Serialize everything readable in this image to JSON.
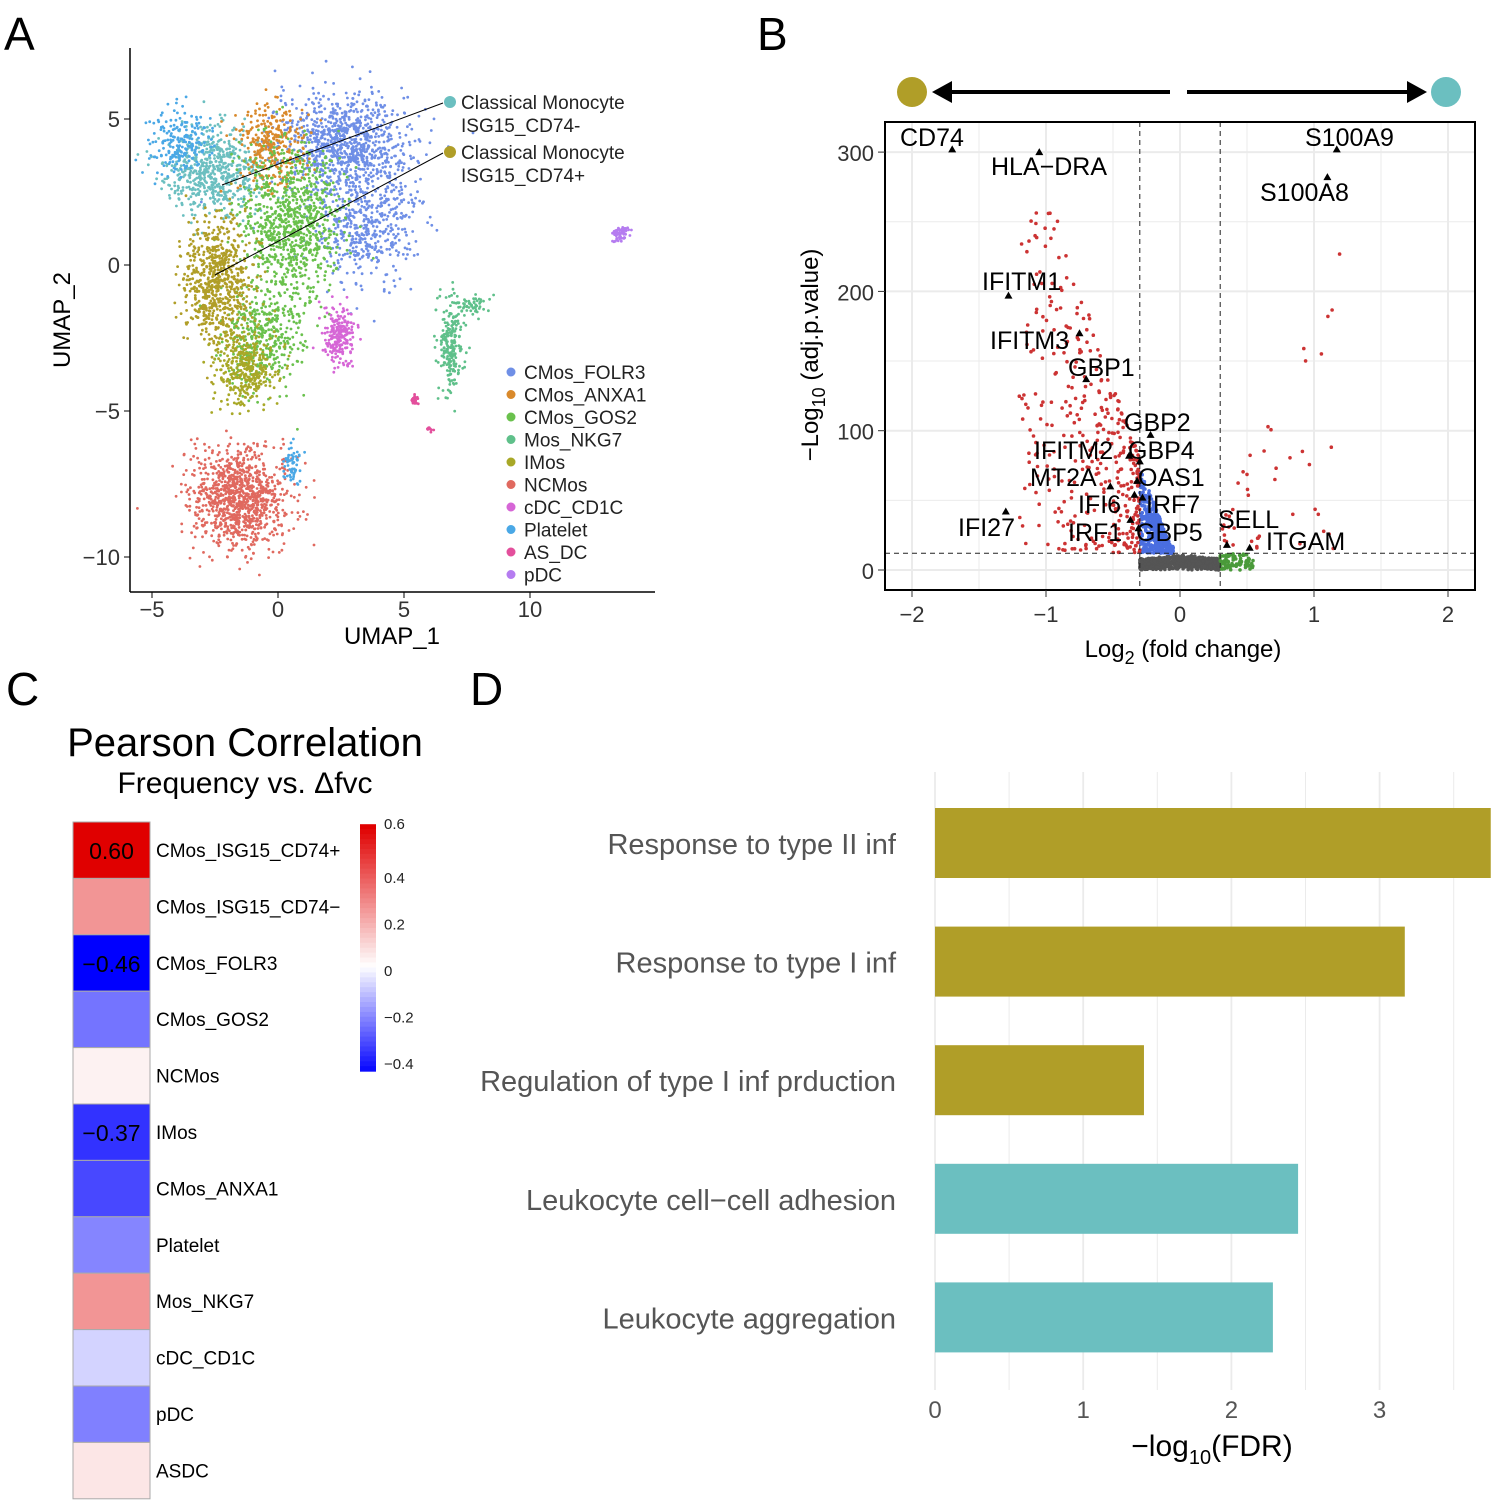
{
  "panels": {
    "a": "A",
    "b": "B",
    "c": "C",
    "d": "D"
  },
  "chart_data": [
    {
      "type": "scatter",
      "panel": "A",
      "xlabel": "UMAP_1",
      "ylabel": "UMAP_2",
      "xlim": [
        -5.5,
        15.5
      ],
      "ylim": [
        -11,
        7.5
      ],
      "xticks": [
        "−5",
        "0",
        "5",
        "10"
      ],
      "yticks": [
        "5",
        "0",
        "−5",
        "−10"
      ],
      "annotations": [
        {
          "line1": "Classical Monocyte",
          "line2": "ISG15_CD74-",
          "color": "#6bbfc0"
        },
        {
          "line1": "Classical Monocyte",
          "line2": "ISG15_CD74+",
          "color": "#b09e28"
        }
      ],
      "legend_position": "bottom-right",
      "legend": [
        {
          "name": "CMos_FOLR3",
          "color": "#6f8fe6"
        },
        {
          "name": "CMos_ANXA1",
          "color": "#d9892b"
        },
        {
          "name": "CMos_GOS2",
          "color": "#6ac14d"
        },
        {
          "name": "Mos_NKG7",
          "color": "#5fc08a"
        },
        {
          "name": "IMos",
          "color": "#a8a827"
        },
        {
          "name": "NCMos",
          "color": "#e0695f"
        },
        {
          "name": "cDC_CD1C",
          "color": "#d666d6"
        },
        {
          "name": "Platelet",
          "color": "#4aa8e6"
        },
        {
          "name": "AS_DC",
          "color": "#e34f9c"
        },
        {
          "name": "pDC",
          "color": "#b57cf0"
        }
      ]
    },
    {
      "type": "scatter",
      "panel": "B",
      "subtype": "volcano",
      "xlabel": "Log2 (fold change)",
      "ylabel": "−Log10 (adj.p.value)",
      "xlim": [
        -2.2,
        2.2
      ],
      "ylim": [
        -15,
        320
      ],
      "xticks": [
        "−2",
        "−1",
        "0",
        "1",
        "2"
      ],
      "yticks": [
        "0",
        "100",
        "200",
        "300"
      ],
      "fc_threshold": [
        -0.3,
        0.3
      ],
      "p_threshold": 12,
      "grid": true,
      "direction_colors": {
        "left": "#b09e28",
        "right": "#6bbfc0"
      },
      "labeled_genes": [
        {
          "gene": "CD74",
          "x": -1.7,
          "y": 302
        },
        {
          "gene": "HLA−DRA",
          "x": -1.05,
          "y": 300
        },
        {
          "gene": "S100A9",
          "x": 1.17,
          "y": 302
        },
        {
          "gene": "S100A8",
          "x": 1.1,
          "y": 282
        },
        {
          "gene": "IFITM1",
          "x": -1.28,
          "y": 197
        },
        {
          "gene": "IFITM3",
          "x": -0.75,
          "y": 170
        },
        {
          "gene": "GBP1",
          "x": -0.7,
          "y": 137
        },
        {
          "gene": "GBP2",
          "x": -0.22,
          "y": 97
        },
        {
          "gene": "IFITM2",
          "x": -0.38,
          "y": 82
        },
        {
          "gene": "GBP4",
          "x": -0.3,
          "y": 78
        },
        {
          "gene": "MT2A",
          "x": -0.52,
          "y": 60
        },
        {
          "gene": "OAS1",
          "x": -0.32,
          "y": 64
        },
        {
          "gene": "IFI6",
          "x": -0.34,
          "y": 54
        },
        {
          "gene": "IRF7",
          "x": -0.28,
          "y": 52
        },
        {
          "gene": "IFI27",
          "x": -1.3,
          "y": 42
        },
        {
          "gene": "IRF1",
          "x": -0.37,
          "y": 36
        },
        {
          "gene": "GBP5",
          "x": -0.31,
          "y": 30
        },
        {
          "gene": "SELL",
          "x": 0.35,
          "y": 18
        },
        {
          "gene": "ITGAM",
          "x": 0.52,
          "y": 16
        }
      ]
    },
    {
      "type": "heatmap",
      "panel": "C",
      "title": "Pearson Correlation",
      "subtitle": "Frequency vs. Δfvc",
      "rows": [
        {
          "name": "CMos_ISG15_CD74+",
          "value": 0.6,
          "label": "0.60"
        },
        {
          "name": "CMos_ISG15_CD74−",
          "value": 0.25
        },
        {
          "name": "CMos_FOLR3",
          "value": -0.46,
          "label": "−0.46"
        },
        {
          "name": "CMos_GOS2",
          "value": -0.25
        },
        {
          "name": "NCMos",
          "value": 0.03
        },
        {
          "name": "IMos",
          "value": -0.37,
          "label": "−0.37"
        },
        {
          "name": "CMos_ANXA1",
          "value": -0.33
        },
        {
          "name": "Platelet",
          "value": -0.22
        },
        {
          "name": "Mos_NKG7",
          "value": 0.25
        },
        {
          "name": "cDC_CD1C",
          "value": -0.08
        },
        {
          "name": "pDC",
          "value": -0.23
        },
        {
          "name": "ASDC",
          "value": 0.06
        }
      ],
      "colorbar": {
        "min": -0.46,
        "max": 0.6,
        "ticks": [
          "0.6",
          "0.4",
          "0.2",
          "0",
          "−0.2",
          "−0.4"
        ],
        "low": "#0000ff",
        "mid": "#ffffff",
        "high": "#e00000"
      }
    },
    {
      "type": "bar",
      "panel": "D",
      "orientation": "horizontal",
      "xlabel": "−log10(FDR)",
      "xticks": [
        "0",
        "1",
        "2",
        "3"
      ],
      "xlim": [
        0,
        3.75
      ],
      "categories": [
        "Response to type II inf",
        "Response to type I inf",
        "Regulation of type I inf prduction",
        "Leukocyte cell−cell adhesion",
        "Leukocyte aggregation"
      ],
      "values": [
        3.75,
        3.17,
        1.41,
        2.45,
        2.28
      ],
      "colors": [
        "#b09e28",
        "#b09e28",
        "#b09e28",
        "#6bbfc0",
        "#6bbfc0"
      ],
      "grid": true
    }
  ]
}
